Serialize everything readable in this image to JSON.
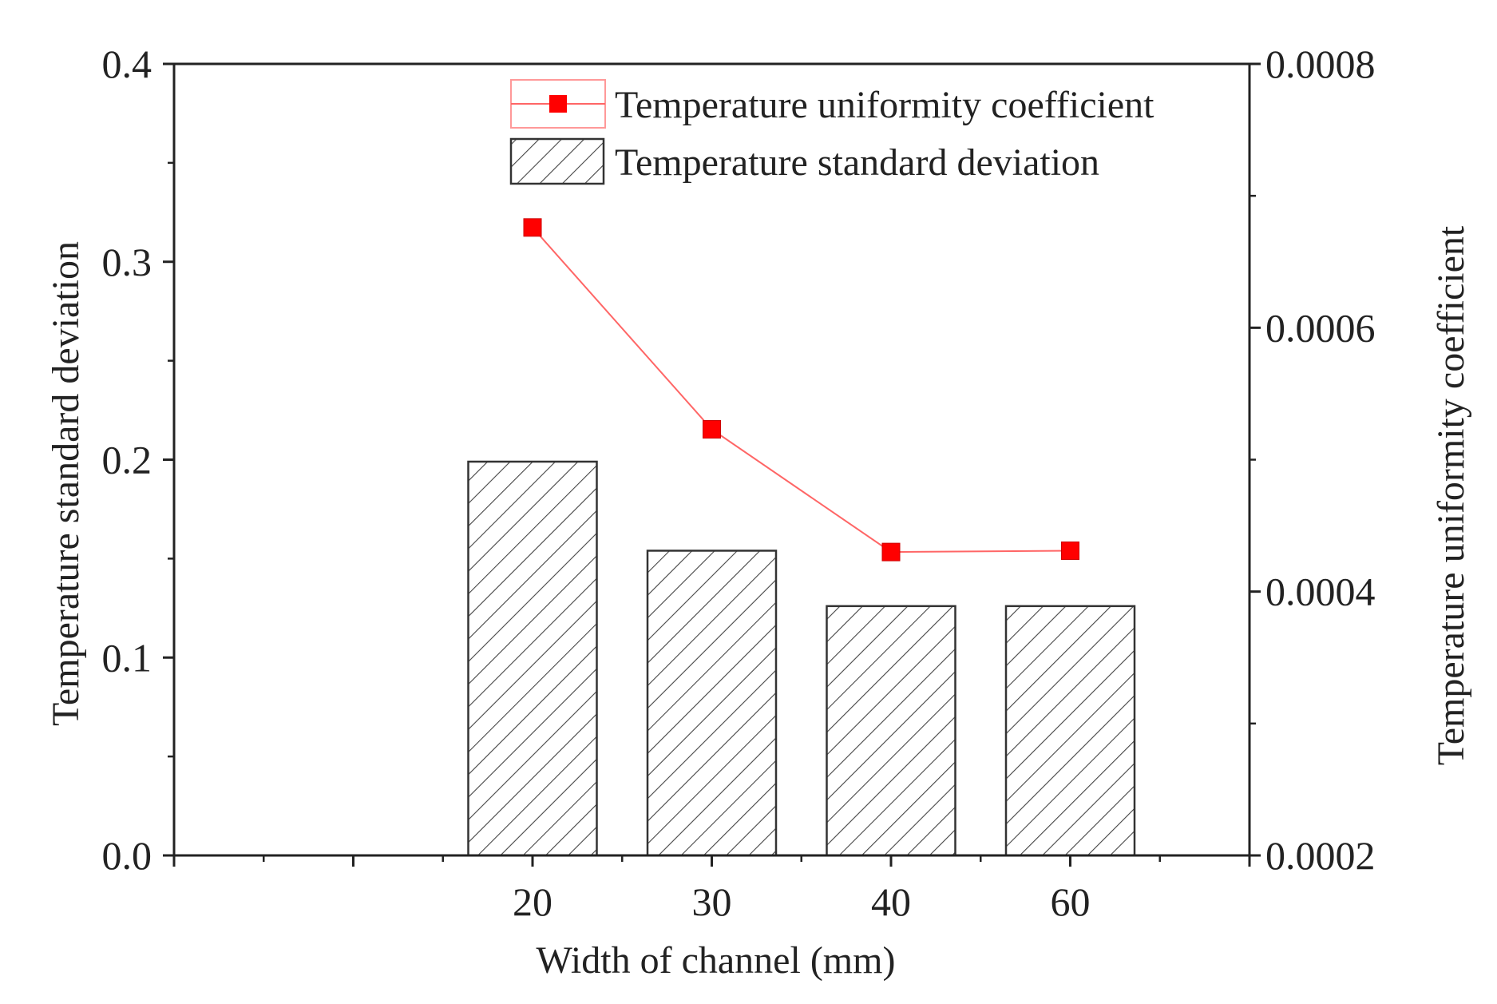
{
  "chart_data": {
    "type": "bar+line",
    "title": "",
    "xlabel": "Width of channel (mm)",
    "categories": [
      "20",
      "30",
      "40",
      "60"
    ],
    "left_axis": {
      "label": "Temperature standard deviation",
      "ylim": [
        0.0,
        0.4
      ],
      "ticks": [
        "0.0",
        "0.1",
        "0.2",
        "0.3",
        "0.4"
      ],
      "tick_values": [
        0.0,
        0.1,
        0.2,
        0.3,
        0.4
      ]
    },
    "right_axis": {
      "label": "Temperature uniformity coefficient",
      "ylim": [
        0.0002,
        0.0008
      ],
      "ticks": [
        "0.0002",
        "0.0004",
        "0.0006",
        "0.0008"
      ],
      "tick_values": [
        0.0002,
        0.0004,
        0.0006,
        0.0008
      ]
    },
    "series": [
      {
        "name": "Temperature standard deviation",
        "kind": "bar",
        "axis": "left",
        "values": [
          0.199,
          0.154,
          0.126,
          0.126
        ],
        "color": "#333333"
      },
      {
        "name": "Temperature uniformity coefficient",
        "kind": "line",
        "axis": "right",
        "values": [
          0.000676,
          0.000523,
          0.00043,
          0.000431
        ],
        "color": "#ff0000"
      }
    ],
    "legend": {
      "position": "top-right",
      "entries": [
        "Temperature uniformity coefficient",
        "Temperature standard deviation"
      ]
    },
    "grid": false
  }
}
